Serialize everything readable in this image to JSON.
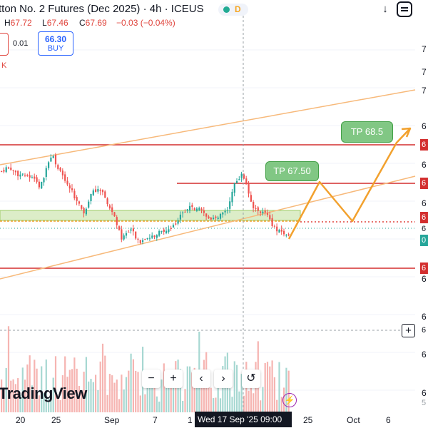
{
  "header": {
    "title": "tton No. 2 Futures (Dec 2025) · 4h · ICEUS",
    "ohlc": [
      {
        "k": "H",
        "v": "67.72"
      },
      {
        "k": "L",
        "v": "67.46"
      },
      {
        "k": "C",
        "v": "67.69"
      },
      {
        "k": "",
        "v": "−0.03 (−0.04%)"
      }
    ],
    "status_letter": "D",
    "spread": "0.01",
    "buy_price": "66.30",
    "buy_label": "BUY",
    "k_marker": "K"
  },
  "colors": {
    "bull": "#26a69a",
    "bear": "#ef5350",
    "resistance": "#d32f2f",
    "channel": "#f7b97a",
    "projection": "#f2a12e",
    "zone_fill": "#dcedc8",
    "tp_fill": "#81c784"
  },
  "y_axis": {
    "ticks": [
      "7",
      "7",
      "7",
      "6",
      "6",
      "6",
      "6",
      "6",
      "6",
      "6",
      "6"
    ],
    "price_labels": [
      {
        "text": "6",
        "color": "#d32f2f"
      },
      {
        "text": "6",
        "color": "#d32f2f"
      },
      {
        "text": "6",
        "color": "#d32f2f"
      },
      {
        "text": "6",
        "color": "#9aa0a6"
      },
      {
        "text": "0",
        "color": "#26a69a"
      },
      {
        "text": "6",
        "color": "#d32f2f"
      },
      {
        "text": "6",
        "color": "#131722"
      },
      {
        "text": "5",
        "color": "#9aa0a6"
      }
    ]
  },
  "x_axis": {
    "ticks": [
      "20",
      "25",
      "Sep",
      "7",
      "1",
      "25",
      "Oct",
      "6"
    ],
    "crosshair_label": "Wed 17 Sep '25   09:00"
  },
  "annotations": {
    "tp1": "TP 67.50",
    "tp2": "TP 68.5"
  },
  "toolbar": {
    "zoom_out": "−",
    "zoom_in": "+",
    "scroll_left": "‹",
    "scroll_right": "›",
    "reset": "↺"
  },
  "icons": [
    "status-dot-icon",
    "arrow-down-icon",
    "screenshot-icon",
    "plus-icon",
    "lightning-icon"
  ],
  "watermark": "TradingView"
}
